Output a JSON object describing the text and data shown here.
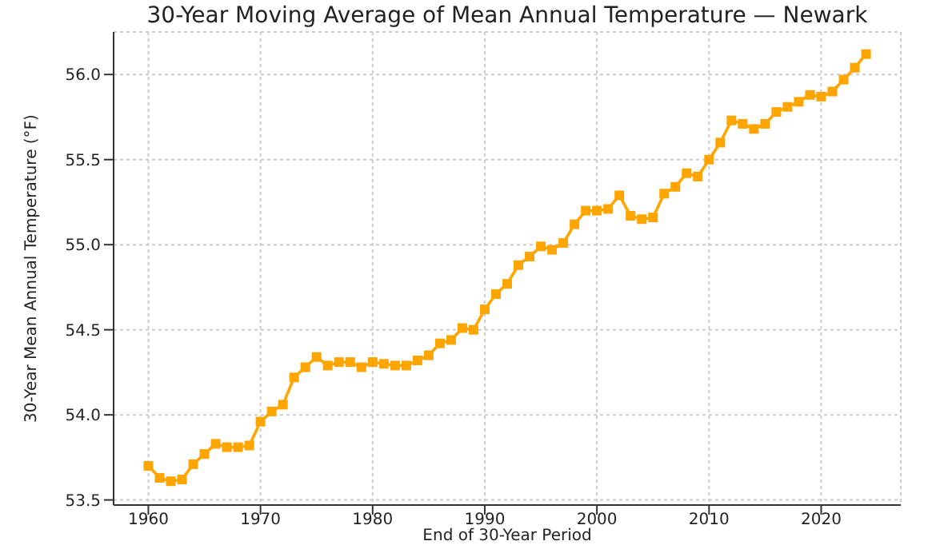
{
  "chart_data": {
    "type": "line",
    "title": "30-Year Moving Average of Mean Annual Temperature — Newark",
    "xlabel": "End of 30-Year Period",
    "ylabel": "30-Year Mean Annual Temperature (°F)",
    "x": [
      1960,
      1961,
      1962,
      1963,
      1964,
      1965,
      1966,
      1967,
      1968,
      1969,
      1970,
      1971,
      1972,
      1973,
      1974,
      1975,
      1976,
      1977,
      1978,
      1979,
      1980,
      1981,
      1982,
      1983,
      1984,
      1985,
      1986,
      1987,
      1988,
      1989,
      1990,
      1991,
      1992,
      1993,
      1994,
      1995,
      1996,
      1997,
      1998,
      1999,
      2000,
      2001,
      2002,
      2003,
      2004,
      2005,
      2006,
      2007,
      2008,
      2009,
      2010,
      2011,
      2012,
      2013,
      2014,
      2015,
      2016,
      2017,
      2018,
      2019,
      2020,
      2021,
      2022,
      2023,
      2024
    ],
    "series": [
      {
        "color": "#ffa500",
        "values": [
          53.7,
          53.63,
          53.61,
          53.62,
          53.71,
          53.77,
          53.83,
          53.81,
          53.81,
          53.82,
          53.96,
          54.02,
          54.06,
          54.22,
          54.28,
          54.34,
          54.29,
          54.31,
          54.31,
          54.28,
          54.31,
          54.3,
          54.29,
          54.29,
          54.32,
          54.35,
          54.42,
          54.44,
          54.51,
          54.5,
          54.62,
          54.71,
          54.77,
          54.88,
          54.93,
          54.99,
          54.97,
          55.01,
          55.12,
          55.2,
          55.2,
          55.21,
          55.29,
          55.17,
          55.15,
          55.16,
          55.3,
          55.34,
          55.42,
          55.4,
          55.5,
          55.6,
          55.73,
          55.71,
          55.68,
          55.71,
          55.78,
          55.81,
          55.84,
          55.88,
          55.87,
          55.9,
          55.97,
          56.04,
          56.12
        ]
      }
    ],
    "xlim": [
      1956.9,
      2027.1
    ],
    "xticks": [
      1960,
      1970,
      1980,
      1990,
      2000,
      2010,
      2020
    ],
    "ylim": [
      53.47,
      56.25
    ],
    "yticks": [
      {
        "value": 53.5,
        "label": "53.5"
      },
      {
        "value": 54.0,
        "label": "54.0"
      },
      {
        "value": 54.5,
        "label": "54.5"
      },
      {
        "value": 55.0,
        "label": "55.0"
      },
      {
        "value": 55.5,
        "label": "55.5"
      },
      {
        "value": 56.0,
        "label": "56.0"
      }
    ],
    "grid": true,
    "marker": "square",
    "line_style": "solid"
  }
}
